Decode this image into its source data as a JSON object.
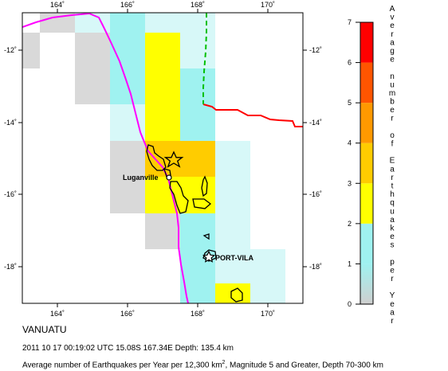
{
  "map": {
    "lon_ticks": [
      "164˚",
      "166˚",
      "168˚",
      "170˚"
    ],
    "lat_ticks": [
      "-12˚",
      "-14˚",
      "-16˚",
      "-18˚"
    ],
    "cities": [
      {
        "name": "Luganville"
      },
      {
        "name": "PORT-VILA"
      }
    ],
    "colors": {
      "gray": "#d9d9d9",
      "cyan": "#9ff2f0",
      "cyan_light": "#d7f8f8",
      "yellow": "#ffff00",
      "orange": "#ffcc00",
      "coastline": "#000000",
      "trench": "#ff00ff",
      "plate_boundary_ridge": "#ff0000",
      "plate_boundary_dashed": "#00c000"
    }
  },
  "legend": {
    "scale_ticks": [
      "0",
      "1",
      "2",
      "3",
      "4",
      "5",
      "6",
      "7"
    ],
    "title": "Average number of Earthquakes per Year",
    "colors": [
      "#ffffff",
      "#9ff2f0",
      "#ffff00",
      "#ffcc00",
      "#ff9900",
      "#ff5500",
      "#ff0000",
      "#b00000"
    ]
  },
  "captions": {
    "region": "VANUATU",
    "event": "2011 10 17 00:19:02 UTC 15.08S 167.34E Depth: 135.4 km",
    "note_pre": "Average number of Earthquakes per Year per 12,300 km",
    "note_sup": "2",
    "note_post": ", Magnitude 5 and Greater, Depth 70-300 km"
  }
}
